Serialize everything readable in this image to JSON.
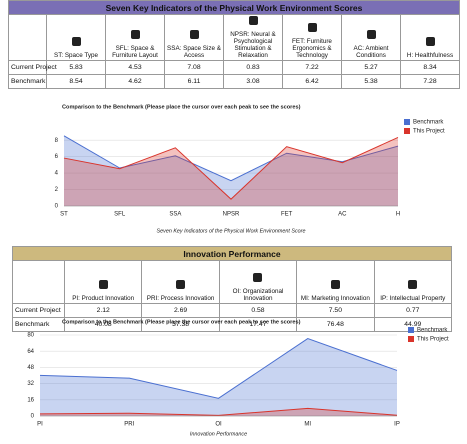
{
  "sections": [
    {
      "table": {
        "title": "Seven Key Indicators of the Physical Work Environment Scores",
        "columns": [
          "ST: Space Type",
          "SFL: Space & Furniture Layout",
          "SSA: Space Size & Access",
          "NPSR: Neural & Psychological Stimulation & Relaxation",
          "FET: Furniture Ergonomics & Technology",
          "AC: Ambient Conditions",
          "H: Healthfulness"
        ],
        "rows": [
          {
            "label": "Current Project",
            "values": [
              5.83,
              4.53,
              7.08,
              0.83,
              7.22,
              5.27,
              8.34
            ]
          },
          {
            "label": "Benchmark",
            "values": [
              8.54,
              4.62,
              6.11,
              3.08,
              6.42,
              5.38,
              7.28
            ]
          }
        ]
      },
      "chart_data": {
        "type": "area",
        "title": "Comparison to the Benchmark (Please place the cursor over each peak to see the scores)",
        "x_label": "Seven Key Indicators of the Physical Work Environment Score",
        "categories": [
          "ST",
          "SFL",
          "SSA",
          "NPSR",
          "FET",
          "AC",
          "H"
        ],
        "series": [
          {
            "name": "Benchmark",
            "color": "#4a6fd0",
            "values": [
              8.54,
              4.62,
              6.11,
              3.08,
              6.42,
              5.38,
              7.28
            ]
          },
          {
            "name": "This Project",
            "color": "#d9342b",
            "values": [
              5.83,
              4.53,
              7.08,
              0.83,
              7.22,
              5.27,
              8.34
            ]
          }
        ],
        "ylim": [
          0,
          9
        ],
        "yticks": [
          0,
          2,
          4,
          6,
          8
        ],
        "grid": true,
        "legend": "top-right"
      }
    },
    {
      "table": {
        "title": "Innovation Performance",
        "columns": [
          "PI: Product Innovation",
          "PRI: Process Innovation",
          "OI: Organizational Innovation",
          "MI: Marketing Innovation",
          "IP: Intellectual Property"
        ],
        "rows": [
          {
            "label": "Current Project",
            "values": [
              2.12,
              2.69,
              0.58,
              7.5,
              0.77
            ]
          },
          {
            "label": "Benchmark",
            "values": [
              40.08,
              37.38,
              17.47,
              76.48,
              44.99
            ]
          }
        ]
      },
      "chart_data": {
        "type": "area",
        "title": "Comparison to the Benchmark (Please place the cursor over each peak to see the scores)",
        "x_label": "Innovation Performance",
        "categories": [
          "PI",
          "PRI",
          "OI",
          "MI",
          "IP"
        ],
        "series": [
          {
            "name": "Benchmark",
            "color": "#4a6fd0",
            "values": [
              40.08,
              37.38,
              17.47,
              76.48,
              44.99
            ]
          },
          {
            "name": "This Project",
            "color": "#d9342b",
            "values": [
              2.12,
              2.69,
              0.58,
              7.5,
              0.77
            ]
          }
        ],
        "ylim": [
          0,
          80
        ],
        "yticks": [
          0,
          16,
          32,
          48,
          64,
          80
        ],
        "grid": true,
        "legend": "top-right"
      }
    }
  ]
}
